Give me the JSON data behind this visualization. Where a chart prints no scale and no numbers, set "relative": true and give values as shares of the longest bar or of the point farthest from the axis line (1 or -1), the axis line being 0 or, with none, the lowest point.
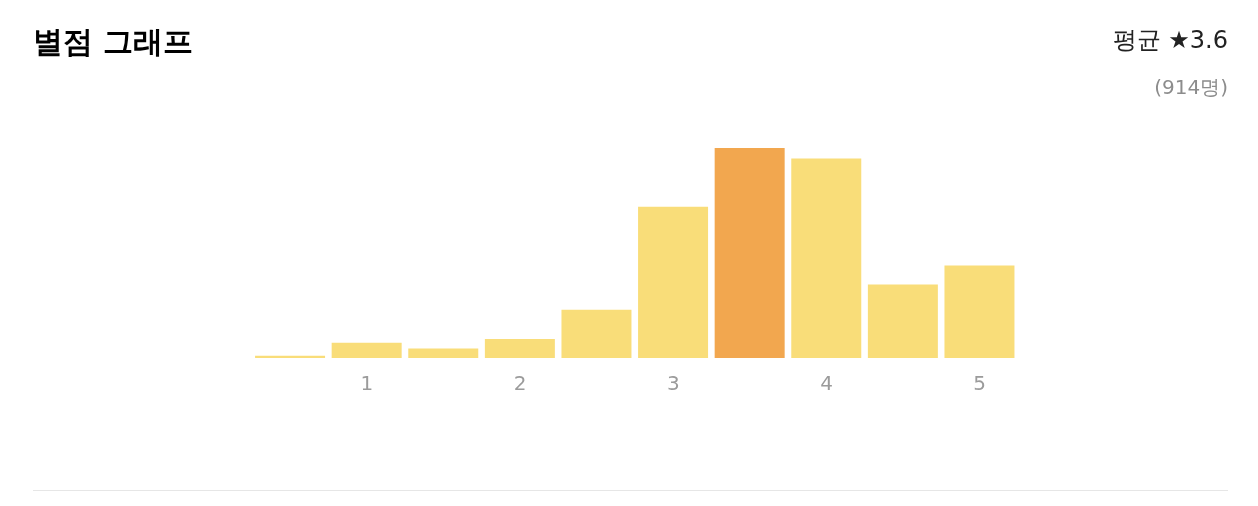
{
  "chart_data": {
    "type": "bar",
    "title": "별점 그래프",
    "annotations": [
      "평균 ★3.6",
      "(914명)"
    ],
    "categories": [
      null,
      "1",
      null,
      "2",
      null,
      "3",
      null,
      "4",
      null,
      "5"
    ],
    "values": [
      0.011,
      0.073,
      0.045,
      0.09,
      0.23,
      0.72,
      1,
      0.95,
      0.35,
      0.44
    ],
    "colors": [
      "#f9dd79",
      "#f9dd79",
      "#f9dd79",
      "#f9dd79",
      "#f9dd79",
      "#f9dd79",
      "#f2a74f",
      "#f9dd79",
      "#f9dd79",
      "#f9dd79"
    ],
    "relative": true
  }
}
